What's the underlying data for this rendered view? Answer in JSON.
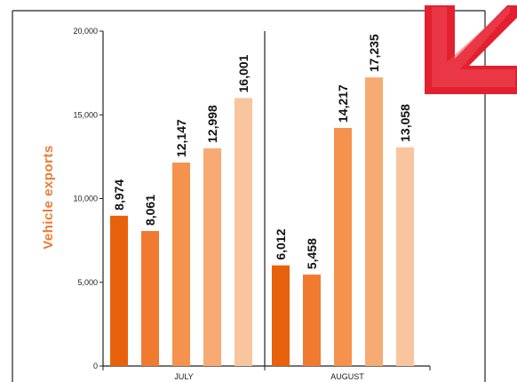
{
  "chart_data": {
    "type": "bar",
    "title": "",
    "ylabel": "Vehicle exports",
    "xlabel": "",
    "ylim": [
      0,
      20000
    ],
    "yticks": [
      0,
      5000,
      10000,
      15000,
      20000
    ],
    "ytick_labels": [
      "0",
      "5,000",
      "10,000",
      "15,000",
      "20,000"
    ],
    "grid": false,
    "groups": [
      {
        "label": "JULY",
        "values": [
          8974,
          8061,
          12147,
          12998,
          16001
        ],
        "value_labels": [
          "8,974",
          "8,061",
          "12,147",
          "12,998",
          "16,001"
        ]
      },
      {
        "label": "AUGUST",
        "values": [
          6012,
          5458,
          14217,
          17235,
          13058
        ],
        "value_labels": [
          "6,012",
          "5,458",
          "14,217",
          "17,235",
          "13,058"
        ]
      }
    ],
    "bar_colors": [
      "#e8620d",
      "#ef7a30",
      "#f4924e",
      "#f7aa73",
      "#f9c59e"
    ]
  },
  "colors": {
    "ylabel": "#ef7a35",
    "corner_logo": "#e2202f"
  },
  "icons": {
    "corner": "red-arrow-logo-icon"
  }
}
